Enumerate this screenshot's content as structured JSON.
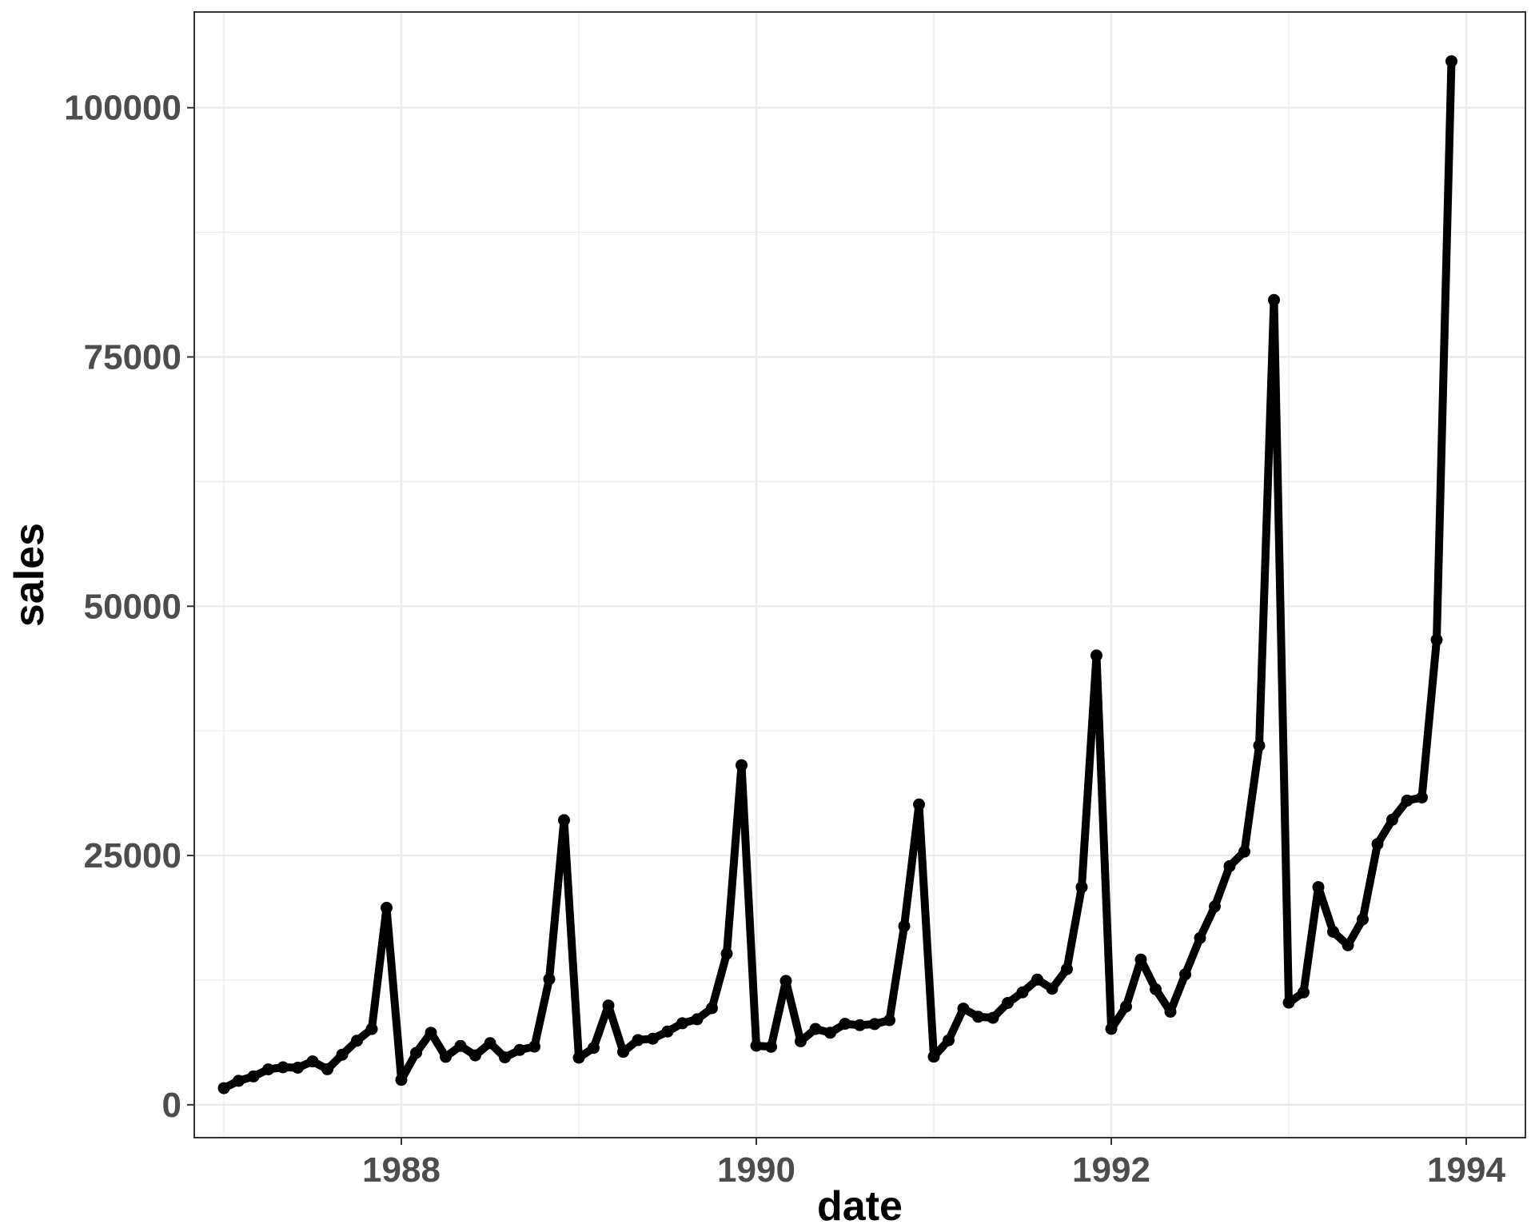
{
  "chart_data": {
    "type": "line",
    "xlabel": "date",
    "ylabel": "sales",
    "x_start": "1987-01",
    "x_step": "month",
    "series": [
      {
        "values": [
          1664,
          2398,
          2841,
          3547,
          3753,
          3714,
          4350,
          3566,
          5022,
          6423,
          7600,
          19756,
          2499,
          5198,
          7225,
          4806,
          5900,
          4951,
          6179,
          4752,
          5496,
          5835,
          12600,
          28541,
          4717,
          5702,
          9957,
          5304,
          6492,
          6630,
          7349,
          8176,
          8573,
          9690,
          15151,
          34061,
          5921,
          5814,
          12421,
          6369,
          7609,
          7224,
          8121,
          7979,
          8093,
          8476,
          17914,
          30114,
          4826,
          6470,
          9638,
          8821,
          8722,
          10209,
          11276,
          12552,
          11637,
          13606,
          21822,
          45060,
          7615,
          9849,
          14558,
          11587,
          9332,
          13082,
          16732,
          19888,
          23933,
          25391,
          36024,
          80721,
          10243,
          11267,
          21827,
          17357,
          15997,
          18601,
          26155,
          28586,
          30505,
          30821,
          46634,
          104661
        ]
      }
    ],
    "x_ticks": [
      "1988",
      "1990",
      "1992",
      "1994"
    ],
    "y_ticks": [
      "0",
      "25000",
      "50000",
      "75000",
      "100000"
    ],
    "xlim": [
      "1986-11",
      "1994-05"
    ],
    "ylim": [
      -3300,
      109600
    ],
    "grid": true,
    "legend": "none",
    "colors": {
      "line": "#000000",
      "grid": "#ebebeb",
      "tick_label": "#4d4d4d",
      "border": "#333333"
    }
  }
}
